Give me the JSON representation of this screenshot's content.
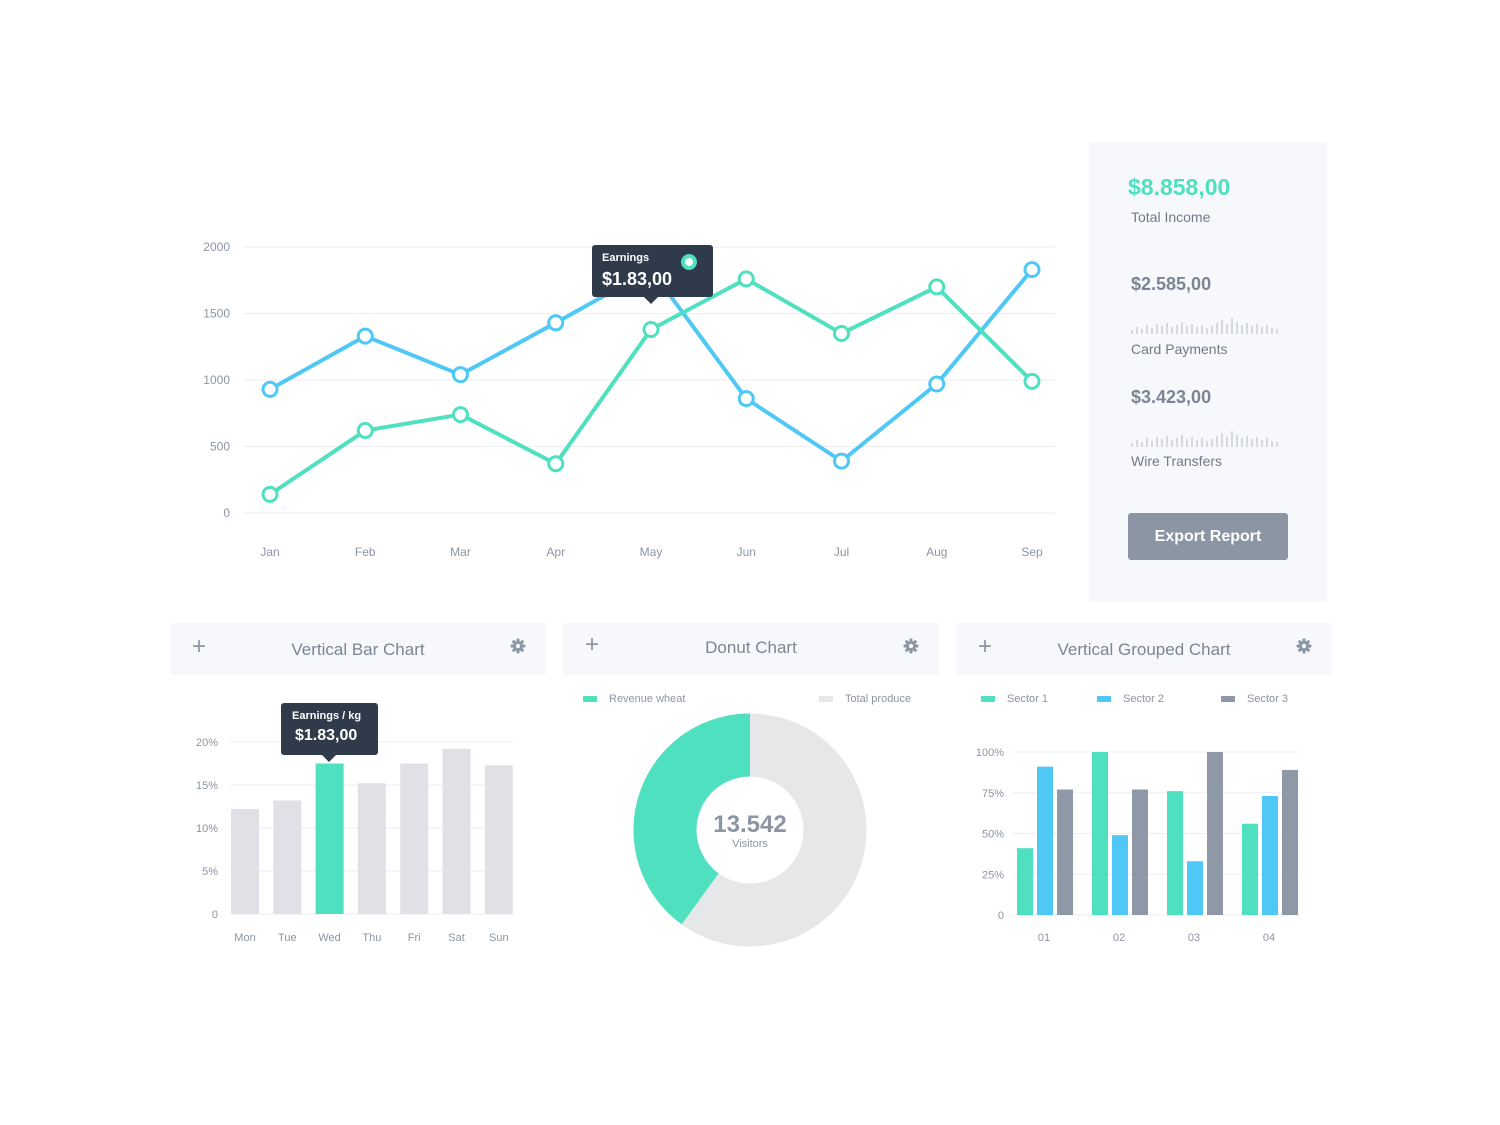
{
  "colors": {
    "green": "#4fe0bf",
    "blue": "#4fc8f5",
    "gray": "#8e98a6",
    "light_bar": "#dfe1e6",
    "donut_rest": "#e6e7e9",
    "tooltip_bg": "#2f3a4a"
  },
  "side_panel": {
    "total_value": "$8.858,00",
    "total_label": "Total Income",
    "card_value": "$2.585,00",
    "card_label": "Card Payments",
    "wire_value": "$3.423,00",
    "wire_label": "Wire Transfers",
    "export_label": "Export Report"
  },
  "line_tooltip": {
    "caption": "Earnings",
    "value": "$1.83,00"
  },
  "bar_panel": {
    "title": "Vertical Bar Chart",
    "plus_icon": "plus-icon",
    "gear_icon": "gear-icon"
  },
  "bar_tooltip": {
    "caption": "Earnings / kg",
    "value": "$1.83,00"
  },
  "donut_panel": {
    "title": "Donut Chart",
    "legend": [
      "Revenue wheat",
      "Total produce"
    ],
    "center_value": "13.542",
    "center_label": "Visitors"
  },
  "grouped_panel": {
    "title": "Vertical Grouped Chart",
    "legend": [
      "Sector 1",
      "Sector 2",
      "Sector 3"
    ]
  },
  "chart_data": [
    {
      "type": "line",
      "categories": [
        "Jan",
        "Feb",
        "Mar",
        "Apr",
        "May",
        "Jun",
        "Jul",
        "Aug",
        "Sep"
      ],
      "yticks": [
        "2000",
        "1500",
        "1000",
        "500",
        "0"
      ],
      "ylim": [
        0,
        2000
      ],
      "grid": true,
      "series": [
        {
          "values": [
            930,
            1330,
            1040,
            1430,
            1830,
            860,
            390,
            970,
            1830
          ]
        },
        {
          "values": [
            140,
            620,
            740,
            370,
            1380,
            1760,
            1350,
            1700,
            990
          ]
        }
      ]
    },
    {
      "type": "bar",
      "categories": [
        "Mon",
        "Tue",
        "Wed",
        "Thu",
        "Fri",
        "Sat",
        "Sun"
      ],
      "values": [
        12.2,
        13.2,
        17.5,
        15.2,
        17.5,
        19.2,
        17.3
      ],
      "highlight_index": 2,
      "yticks": [
        "20%",
        "15%",
        "10%",
        "5%",
        "0"
      ],
      "ylim": [
        0,
        20
      ],
      "grid": true
    },
    {
      "type": "pie",
      "donut": true,
      "series": [
        {
          "name": "Revenue wheat",
          "value": 40
        },
        {
          "name": "Total produce",
          "value": 60
        }
      ]
    },
    {
      "type": "bar",
      "categories": [
        "01",
        "02",
        "03",
        "04"
      ],
      "yticks": [
        "100%",
        "75%",
        "50%",
        "25%",
        "0"
      ],
      "ylim": [
        0,
        100
      ],
      "grid": true,
      "series": [
        {
          "name": "Sector 1",
          "values": [
            41,
            100,
            76,
            56
          ]
        },
        {
          "name": "Sector 2",
          "values": [
            91,
            49,
            33,
            73
          ]
        },
        {
          "name": "Sector 3",
          "values": [
            77,
            77,
            100,
            89
          ]
        }
      ]
    }
  ]
}
